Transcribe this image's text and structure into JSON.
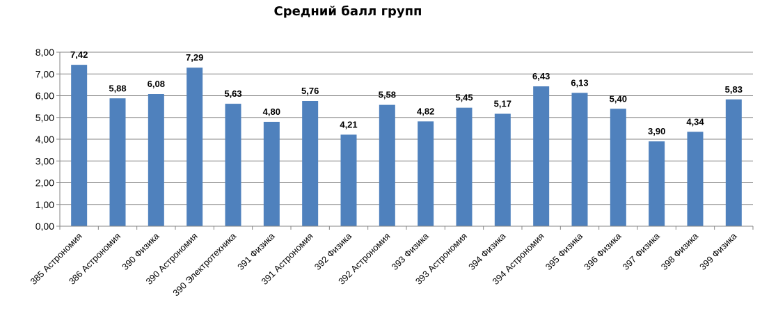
{
  "chart_data": {
    "type": "bar",
    "title": "Средний балл групп",
    "xlabel": "",
    "ylabel": "",
    "categories": [
      "385 Астрономия",
      "386 Астрономия",
      "390 Физика",
      "390 Астрономия",
      "390 Электротехника",
      "391 Физика",
      "391 Астрономия",
      "392 Физика",
      "392 Астрономия",
      "393 Физика",
      "393 Астрономия",
      "394 Физика",
      "394 Астрономия",
      "395 Физика",
      "396 Физика",
      "397 Физика",
      "398 Физика",
      "399 Физика"
    ],
    "values": [
      7.42,
      5.88,
      6.08,
      7.29,
      5.63,
      4.8,
      5.76,
      4.21,
      5.58,
      4.82,
      5.45,
      5.17,
      6.43,
      6.13,
      5.4,
      3.9,
      4.34,
      5.83
    ],
    "value_labels": [
      "7,42",
      "5,88",
      "6,08",
      "7,29",
      "5,63",
      "4,80",
      "5,76",
      "4,21",
      "5,58",
      "4,82",
      "5,45",
      "5,17",
      "6,43",
      "6,13",
      "5,40",
      "3,90",
      "4,34",
      "5,83"
    ],
    "y_ticks": [
      0,
      1,
      2,
      3,
      4,
      5,
      6,
      7,
      8
    ],
    "y_tick_labels": [
      "0,00",
      "1,00",
      "2,00",
      "3,00",
      "4,00",
      "5,00",
      "6,00",
      "7,00",
      "8,00"
    ],
    "ylim": [
      0,
      8
    ],
    "grid": true,
    "bar_color": "#4F81BD",
    "grid_color": "#868686"
  }
}
